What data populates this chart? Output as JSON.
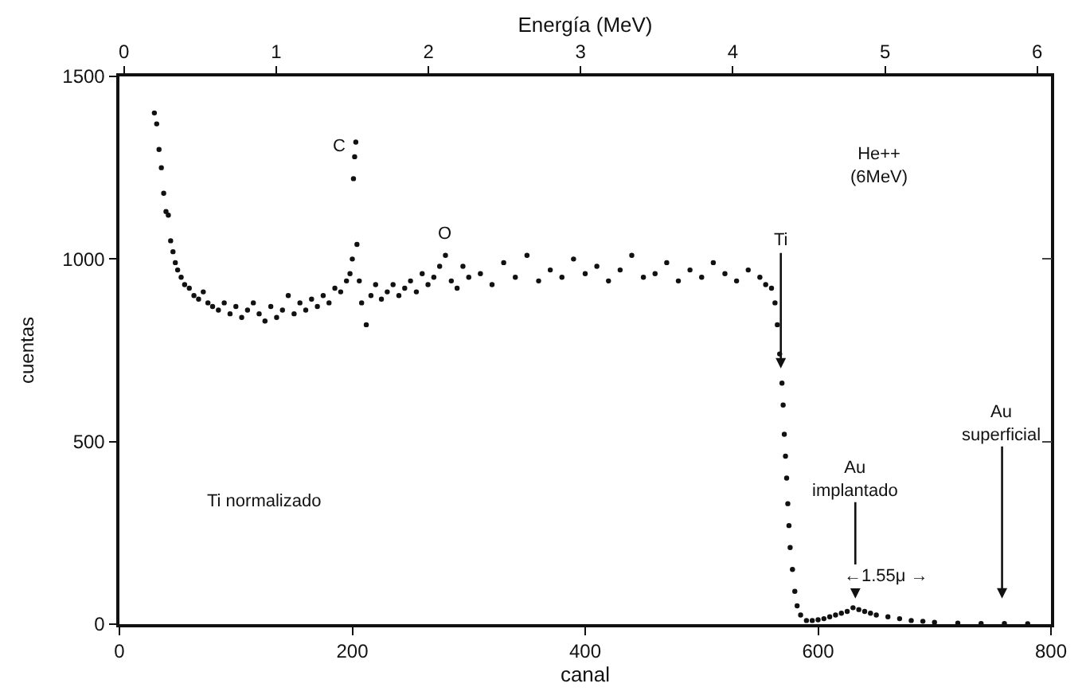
{
  "chart_data": {
    "type": "scatter",
    "xlabel": "canal",
    "ylabel": "cuentas",
    "x2label": "Energía (MeV)",
    "xlim": [
      0,
      800
    ],
    "xticks": [
      0,
      200,
      400,
      600,
      800
    ],
    "ylim": [
      0,
      1500
    ],
    "yticks": [
      0,
      500,
      1000,
      1500
    ],
    "x2lim": [
      -0.03,
      6.09
    ],
    "x2ticks": [
      0,
      1,
      2,
      3,
      4,
      5,
      6
    ],
    "marker": "circle",
    "series": [
      {
        "color": "#111111",
        "x": [
          30,
          32,
          34,
          36,
          38,
          40,
          42,
          44,
          46,
          48,
          50,
          53,
          56,
          60,
          64,
          68,
          72,
          76,
          80,
          85,
          90,
          95,
          100,
          105,
          110,
          115,
          120,
          125,
          130,
          135,
          140,
          145,
          150,
          155,
          160,
          165,
          170,
          175,
          180,
          185,
          190,
          195,
          198,
          200,
          201,
          202,
          203,
          204,
          206,
          208,
          212,
          216,
          220,
          225,
          230,
          235,
          240,
          245,
          250,
          255,
          260,
          265,
          270,
          275,
          280,
          285,
          290,
          295,
          300,
          310,
          320,
          330,
          340,
          350,
          360,
          370,
          380,
          390,
          400,
          410,
          420,
          430,
          440,
          450,
          460,
          470,
          480,
          490,
          500,
          510,
          520,
          530,
          540,
          550,
          555,
          560,
          563,
          565,
          567,
          569,
          570,
          571,
          572,
          573,
          574,
          575,
          576,
          578,
          580,
          582,
          585,
          590,
          595,
          600,
          605,
          610,
          615,
          620,
          625,
          630,
          635,
          640,
          645,
          650,
          660,
          670,
          680,
          690,
          700,
          720,
          740,
          760,
          780
        ],
        "values": [
          1400,
          1370,
          1300,
          1250,
          1180,
          1130,
          1120,
          1050,
          1020,
          990,
          970,
          950,
          930,
          920,
          900,
          890,
          910,
          880,
          870,
          860,
          880,
          850,
          870,
          840,
          860,
          880,
          850,
          830,
          870,
          840,
          860,
          900,
          850,
          880,
          860,
          890,
          870,
          900,
          880,
          920,
          910,
          940,
          960,
          1000,
          1220,
          1280,
          1320,
          1040,
          940,
          880,
          820,
          900,
          930,
          890,
          910,
          930,
          900,
          920,
          940,
          910,
          960,
          930,
          950,
          980,
          1010,
          940,
          920,
          980,
          950,
          960,
          930,
          990,
          950,
          1010,
          940,
          970,
          950,
          1000,
          960,
          980,
          940,
          970,
          1010,
          950,
          960,
          990,
          940,
          970,
          950,
          990,
          960,
          940,
          970,
          950,
          930,
          920,
          880,
          820,
          740,
          660,
          600,
          520,
          460,
          400,
          330,
          270,
          210,
          150,
          90,
          50,
          25,
          10,
          10,
          12,
          15,
          20,
          25,
          30,
          35,
          45,
          40,
          35,
          30,
          25,
          20,
          15,
          10,
          8,
          5,
          3,
          2,
          2,
          1
        ]
      }
    ],
    "annotations": [
      "C",
      "O",
      "Ti",
      "He++\n(6MeV)",
      "Ti normalizado",
      "Au\nimplantado",
      "Au\nsuperficial",
      "←1.55μ →"
    ]
  }
}
